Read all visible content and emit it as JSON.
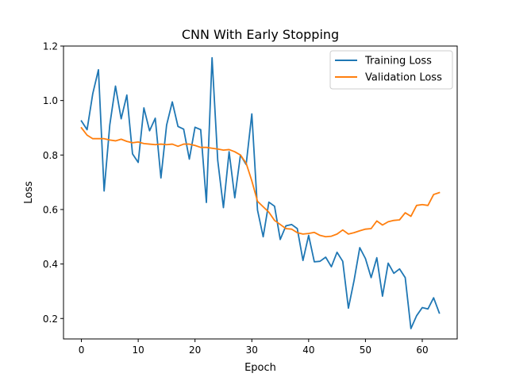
{
  "chart_data": {
    "type": "line",
    "title": "CNN With Early Stopping",
    "xlabel": "Epoch",
    "ylabel": "Loss",
    "xlim": [
      -3.15,
      66.15
    ],
    "ylim": [
      0.125,
      1.2
    ],
    "xticks": [
      0,
      10,
      20,
      30,
      40,
      50,
      60
    ],
    "yticks": [
      0.2,
      0.4,
      0.6,
      0.8,
      1.0,
      1.2
    ],
    "grid": false,
    "legend_position": "top-right",
    "x": [
      0,
      1,
      2,
      3,
      4,
      5,
      6,
      7,
      8,
      9,
      10,
      11,
      12,
      13,
      14,
      15,
      16,
      17,
      18,
      19,
      20,
      21,
      22,
      23,
      24,
      25,
      26,
      27,
      28,
      29,
      30,
      31,
      32,
      33,
      34,
      35,
      36,
      37,
      38,
      39,
      40,
      41,
      42,
      43,
      44,
      45,
      46,
      47,
      48,
      49,
      50,
      51,
      52,
      53,
      54,
      55,
      56,
      57,
      58,
      59,
      60,
      61,
      62,
      63
    ],
    "series": [
      {
        "name": "Training Loss",
        "color": "#1f77b4",
        "values": [
          0.925,
          0.893,
          1.025,
          1.113,
          0.668,
          0.911,
          1.053,
          0.933,
          1.02,
          0.804,
          0.773,
          0.973,
          0.889,
          0.935,
          0.716,
          0.91,
          0.995,
          0.905,
          0.895,
          0.785,
          0.902,
          0.893,
          0.626,
          1.157,
          0.78,
          0.607,
          0.812,
          0.643,
          0.8,
          0.765,
          0.951,
          0.598,
          0.5,
          0.627,
          0.612,
          0.49,
          0.54,
          0.545,
          0.53,
          0.413,
          0.505,
          0.408,
          0.41,
          0.425,
          0.39,
          0.443,
          0.41,
          0.238,
          0.34,
          0.46,
          0.42,
          0.35,
          0.423,
          0.282,
          0.403,
          0.366,
          0.382,
          0.35,
          0.163,
          0.21,
          0.24,
          0.235,
          0.276,
          0.22
        ]
      },
      {
        "name": "Validation Loss",
        "color": "#ff7f0e",
        "values": [
          0.9,
          0.873,
          0.86,
          0.86,
          0.86,
          0.855,
          0.852,
          0.858,
          0.85,
          0.845,
          0.848,
          0.842,
          0.84,
          0.838,
          0.84,
          0.838,
          0.84,
          0.832,
          0.84,
          0.84,
          0.835,
          0.828,
          0.828,
          0.825,
          0.822,
          0.818,
          0.82,
          0.812,
          0.8,
          0.77,
          0.705,
          0.63,
          0.61,
          0.59,
          0.56,
          0.545,
          0.53,
          0.528,
          0.515,
          0.51,
          0.512,
          0.516,
          0.505,
          0.5,
          0.502,
          0.51,
          0.525,
          0.51,
          0.515,
          0.522,
          0.528,
          0.53,
          0.558,
          0.543,
          0.555,
          0.56,
          0.562,
          0.588,
          0.575,
          0.615,
          0.618,
          0.615,
          0.655,
          0.662
        ]
      }
    ]
  }
}
